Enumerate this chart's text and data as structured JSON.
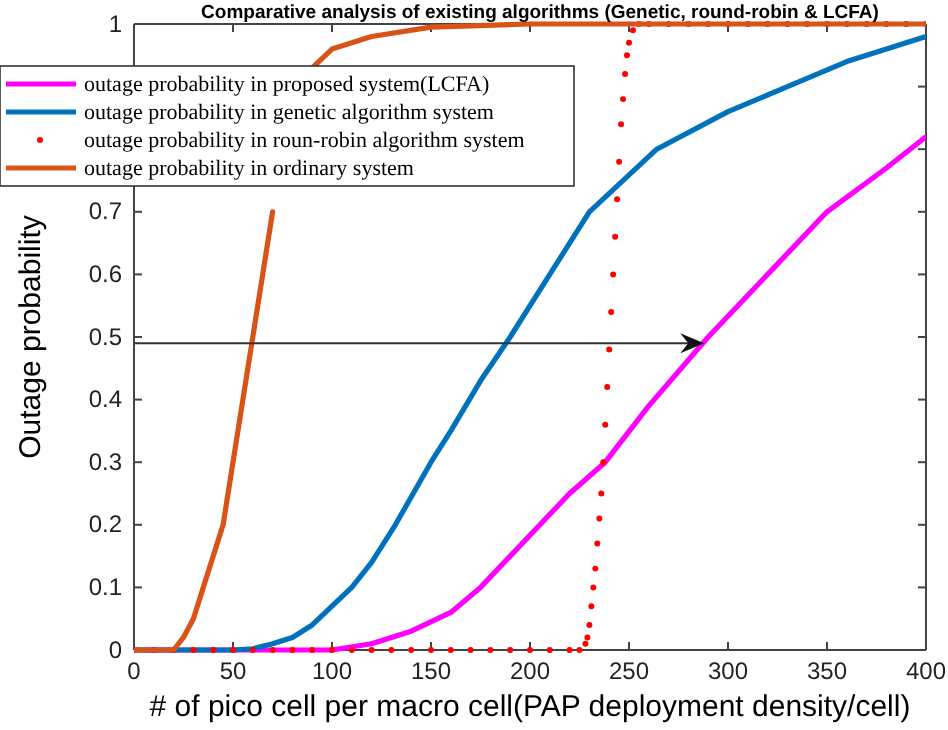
{
  "chart_data": {
    "type": "line",
    "title": "Comparative analysis of existing algorithms (Genetic, round-robin & LCFA)",
    "xlabel": "# of pico cell per macro cell(PAP deployment density/cell)",
    "ylabel": "Outage probability",
    "xlim": [
      0,
      400
    ],
    "xticks": [
      0,
      50,
      100,
      150,
      200,
      250,
      300,
      350,
      400
    ],
    "ylim": [
      0,
      1
    ],
    "yticks": [
      0,
      0.1,
      0.2,
      0.3,
      0.4,
      0.5,
      0.6,
      0.7,
      {
        "value": 0.8,
        "label": null
      },
      {
        "value": 0.9,
        "label": null
      },
      1
    ],
    "legend": "top left",
    "grid": false,
    "series": [
      {
        "name": "outage probability in proposed system(LCFA)",
        "color": "#ff00ff",
        "x": [
          0,
          100,
          120,
          140,
          160,
          175,
          190,
          205,
          220,
          238,
          260,
          290,
          320,
          350,
          380,
          400
        ],
        "values": [
          0,
          0,
          0.01,
          0.03,
          0.06,
          0.1,
          0.15,
          0.2,
          0.25,
          0.3,
          0.39,
          0.5,
          0.6,
          0.7,
          0.77,
          0.82
        ]
      },
      {
        "name": "outage probability in genetic algorithm system",
        "color": "#0072bd",
        "x": [
          0,
          50,
          60,
          70,
          80,
          90,
          100,
          110,
          120,
          132,
          150,
          160,
          175,
          190,
          210,
          230,
          264,
          300,
          330,
          360,
          400
        ],
        "values": [
          0,
          0,
          0.002,
          0.01,
          0.02,
          0.04,
          0.07,
          0.1,
          0.14,
          0.2,
          0.3,
          0.35,
          0.43,
          0.5,
          0.6,
          0.7,
          0.8,
          0.86,
          0.9,
          0.94,
          0.98
        ]
      },
      {
        "name": "outage probability in roun-robin algorithm system",
        "color": "#ff0000",
        "type": "scatter",
        "marker": "circle",
        "x": [
          0,
          10,
          20,
          30,
          40,
          50,
          60,
          70,
          80,
          90,
          100,
          110,
          120,
          130,
          140,
          150,
          160,
          170,
          180,
          190,
          200,
          210,
          220,
          225,
          228,
          229,
          230,
          231,
          232,
          233,
          234,
          235,
          236,
          237,
          238,
          239,
          240,
          241,
          242,
          243,
          244,
          245,
          246,
          247,
          248,
          249,
          250,
          252,
          255,
          260,
          270,
          280,
          290,
          300,
          310,
          320,
          330,
          340,
          350,
          360,
          370,
          380,
          390,
          400
        ],
        "values": [
          0,
          0,
          0,
          0,
          0,
          0,
          0,
          0,
          0,
          0,
          0,
          0,
          0,
          0,
          0,
          0,
          0,
          0,
          0,
          0,
          0,
          0,
          0,
          0,
          0.01,
          0.02,
          0.04,
          0.07,
          0.1,
          0.13,
          0.17,
          0.21,
          0.25,
          0.3,
          0.36,
          0.42,
          0.48,
          0.54,
          0.6,
          0.66,
          0.72,
          0.78,
          0.84,
          0.88,
          0.92,
          0.95,
          0.97,
          0.99,
          1,
          1,
          1,
          1,
          1,
          1,
          1,
          1,
          1,
          1,
          1,
          1,
          1,
          1,
          1,
          1
        ]
      },
      {
        "name": "outage probability in ordinary system",
        "color": "#d95319",
        "x": [
          0,
          10,
          20,
          25,
          30,
          35,
          40,
          45,
          50,
          55,
          60,
          65,
          70,
          75,
          80,
          90,
          100,
          120,
          150,
          200,
          300,
          400
        ],
        "values": [
          0,
          0,
          0,
          0.02,
          0.05,
          0.1,
          0.15,
          0.2,
          0.3,
          0.4,
          0.5,
          0.6,
          0.7,
          null,
          null,
          0.93,
          0.96,
          0.98,
          0.995,
          1,
          1,
          1
        ]
      }
    ]
  }
}
